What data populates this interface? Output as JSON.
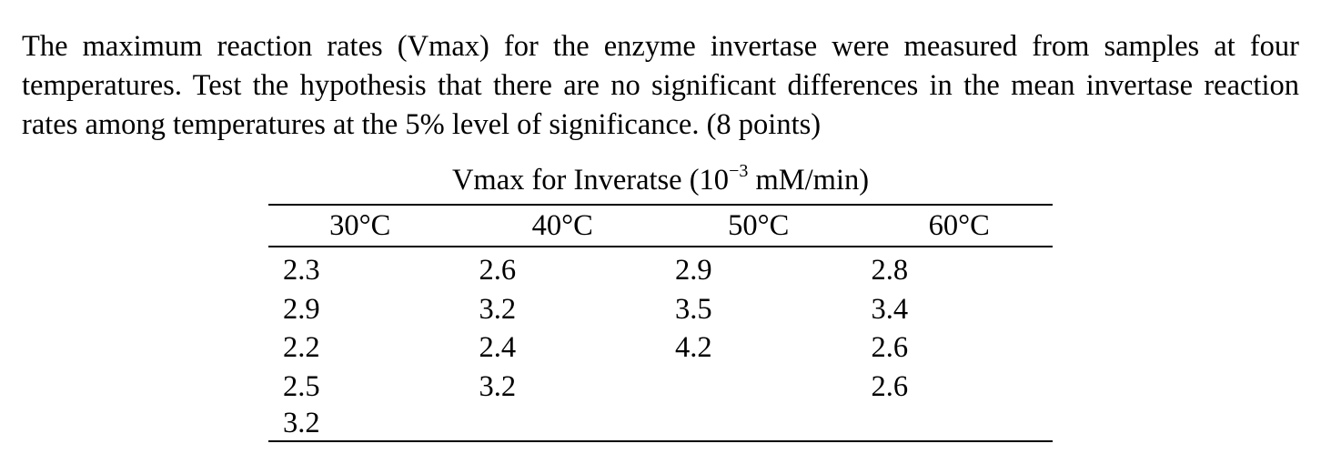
{
  "problem": {
    "text": "The maximum reaction rates (Vmax) for the enzyme invertase were measured from samples at four temperatures. Test the hypothesis that there are no significant differences in the mean invertase reaction rates among temperatures at the 5% level of significance. (8 points)"
  },
  "table": {
    "caption_prefix": "Vmax for Inveratse (10",
    "caption_exponent": "−3",
    "caption_suffix": " mM/min)",
    "headers": [
      "30°C",
      "40°C",
      "50°C",
      "60°C"
    ],
    "rows": [
      [
        "2.3",
        "2.6",
        "2.9",
        "2.8"
      ],
      [
        "2.9",
        "3.2",
        "3.5",
        "3.4"
      ],
      [
        "2.2",
        "2.4",
        "4.2",
        "2.6"
      ],
      [
        "2.5",
        "3.2",
        "",
        "2.6"
      ],
      [
        "3.2",
        "",
        "",
        ""
      ]
    ]
  }
}
